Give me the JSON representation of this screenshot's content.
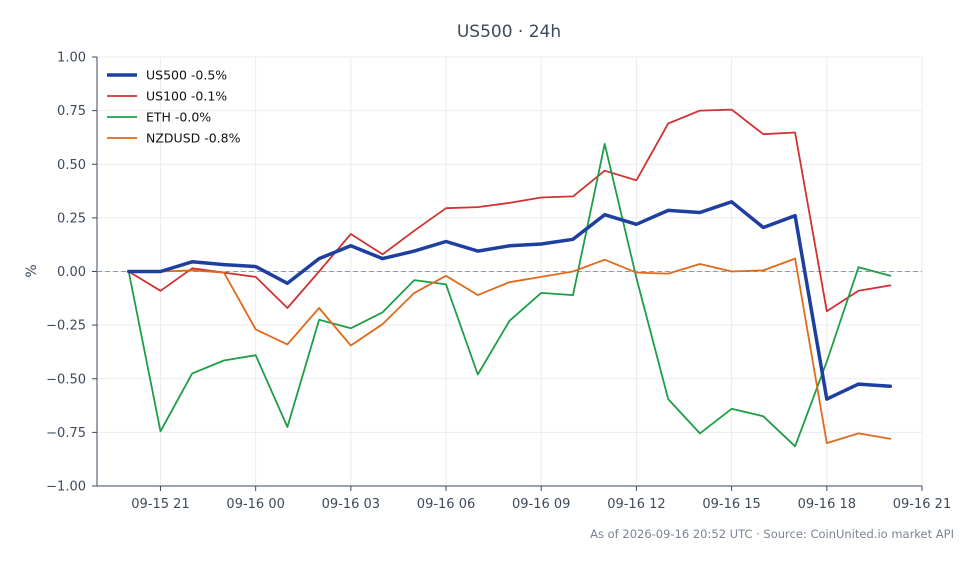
{
  "chart_data": {
    "type": "line",
    "title": "US500 · 24h",
    "xlabel": "",
    "ylabel": "%",
    "ylim": [
      -1.0,
      1.0
    ],
    "yticks": [
      -1.0,
      -0.75,
      -0.5,
      -0.25,
      0.0,
      0.25,
      0.5,
      0.75,
      1.0
    ],
    "ytick_labels": [
      "−1.00",
      "−0.75",
      "−0.50",
      "−0.25",
      "0.00",
      "0.25",
      "0.50",
      "0.75",
      "1.00"
    ],
    "xlim": [
      "2026-09-15 19:00",
      "2026-09-16 21:00"
    ],
    "xticks": [
      "2026-09-15 21:00",
      "2026-09-16 00:00",
      "2026-09-16 03:00",
      "2026-09-16 06:00",
      "2026-09-16 09:00",
      "2026-09-16 12:00",
      "2026-09-16 15:00",
      "2026-09-16 18:00",
      "2026-09-16 21:00"
    ],
    "xtick_labels": [
      "09-15 21",
      "09-16 00",
      "09-16 03",
      "09-16 06",
      "09-16 09",
      "09-16 12",
      "09-16 15",
      "09-16 18",
      "09-16 21"
    ],
    "x": [
      "2026-09-15 20:00",
      "2026-09-15 21:00",
      "2026-09-15 22:00",
      "2026-09-15 23:00",
      "2026-09-16 00:00",
      "2026-09-16 01:00",
      "2026-09-16 02:00",
      "2026-09-16 03:00",
      "2026-09-16 04:00",
      "2026-09-16 05:00",
      "2026-09-16 06:00",
      "2026-09-16 07:00",
      "2026-09-16 08:00",
      "2026-09-16 09:00",
      "2026-09-16 10:00",
      "2026-09-16 11:00",
      "2026-09-16 12:00",
      "2026-09-16 13:00",
      "2026-09-16 14:00",
      "2026-09-16 15:00",
      "2026-09-16 16:00",
      "2026-09-16 17:00",
      "2026-09-16 18:00",
      "2026-09-16 19:00",
      "2026-09-16 20:00"
    ],
    "series": [
      {
        "name": "US500 -0.5%",
        "color": "#1f3fa0",
        "values": [
          0.0,
          0.0,
          0.045,
          0.032,
          0.023,
          -0.055,
          0.06,
          0.12,
          0.06,
          0.095,
          0.14,
          0.095,
          0.12,
          0.128,
          0.15,
          0.265,
          0.22,
          0.285,
          0.275,
          0.325,
          0.205,
          0.26,
          -0.595,
          -0.525,
          -0.535
        ]
      },
      {
        "name": "US100 -0.1%",
        "color": "#d03232",
        "values": [
          0.0,
          -0.09,
          0.015,
          -0.005,
          -0.025,
          -0.17,
          0.0,
          0.175,
          0.08,
          0.19,
          0.295,
          0.3,
          0.32,
          0.345,
          0.35,
          0.47,
          0.425,
          0.69,
          0.75,
          0.755,
          0.64,
          0.648,
          -0.185,
          -0.09,
          -0.065
        ]
      },
      {
        "name": "ETH -0.0%",
        "color": "#1e9e46",
        "values": [
          0.0,
          -0.745,
          -0.475,
          -0.415,
          -0.39,
          -0.725,
          -0.225,
          -0.265,
          -0.19,
          -0.04,
          -0.06,
          -0.48,
          -0.23,
          -0.1,
          -0.11,
          0.595,
          -0.03,
          -0.595,
          -0.755,
          -0.64,
          -0.675,
          -0.815,
          -0.42,
          0.02,
          -0.02
        ]
      },
      {
        "name": "NZDUSD -0.8%",
        "color": "#e06a1c",
        "values": [
          0.0,
          0.0,
          0.005,
          -0.005,
          -0.27,
          -0.34,
          -0.17,
          -0.345,
          -0.245,
          -0.1,
          -0.02,
          -0.11,
          -0.05,
          -0.025,
          0.0,
          0.055,
          -0.005,
          -0.01,
          0.035,
          0.0,
          0.005,
          0.06,
          -0.8,
          -0.755,
          -0.78
        ]
      }
    ],
    "reference_line": {
      "y": 0.0,
      "color": "#8a9ab0",
      "style": "dashed"
    },
    "grid": true,
    "legend_position": "top-left"
  },
  "footer": {
    "text": "As of 2026-09-16 20:52 UTC · Source: CoinUnited.io market API"
  }
}
